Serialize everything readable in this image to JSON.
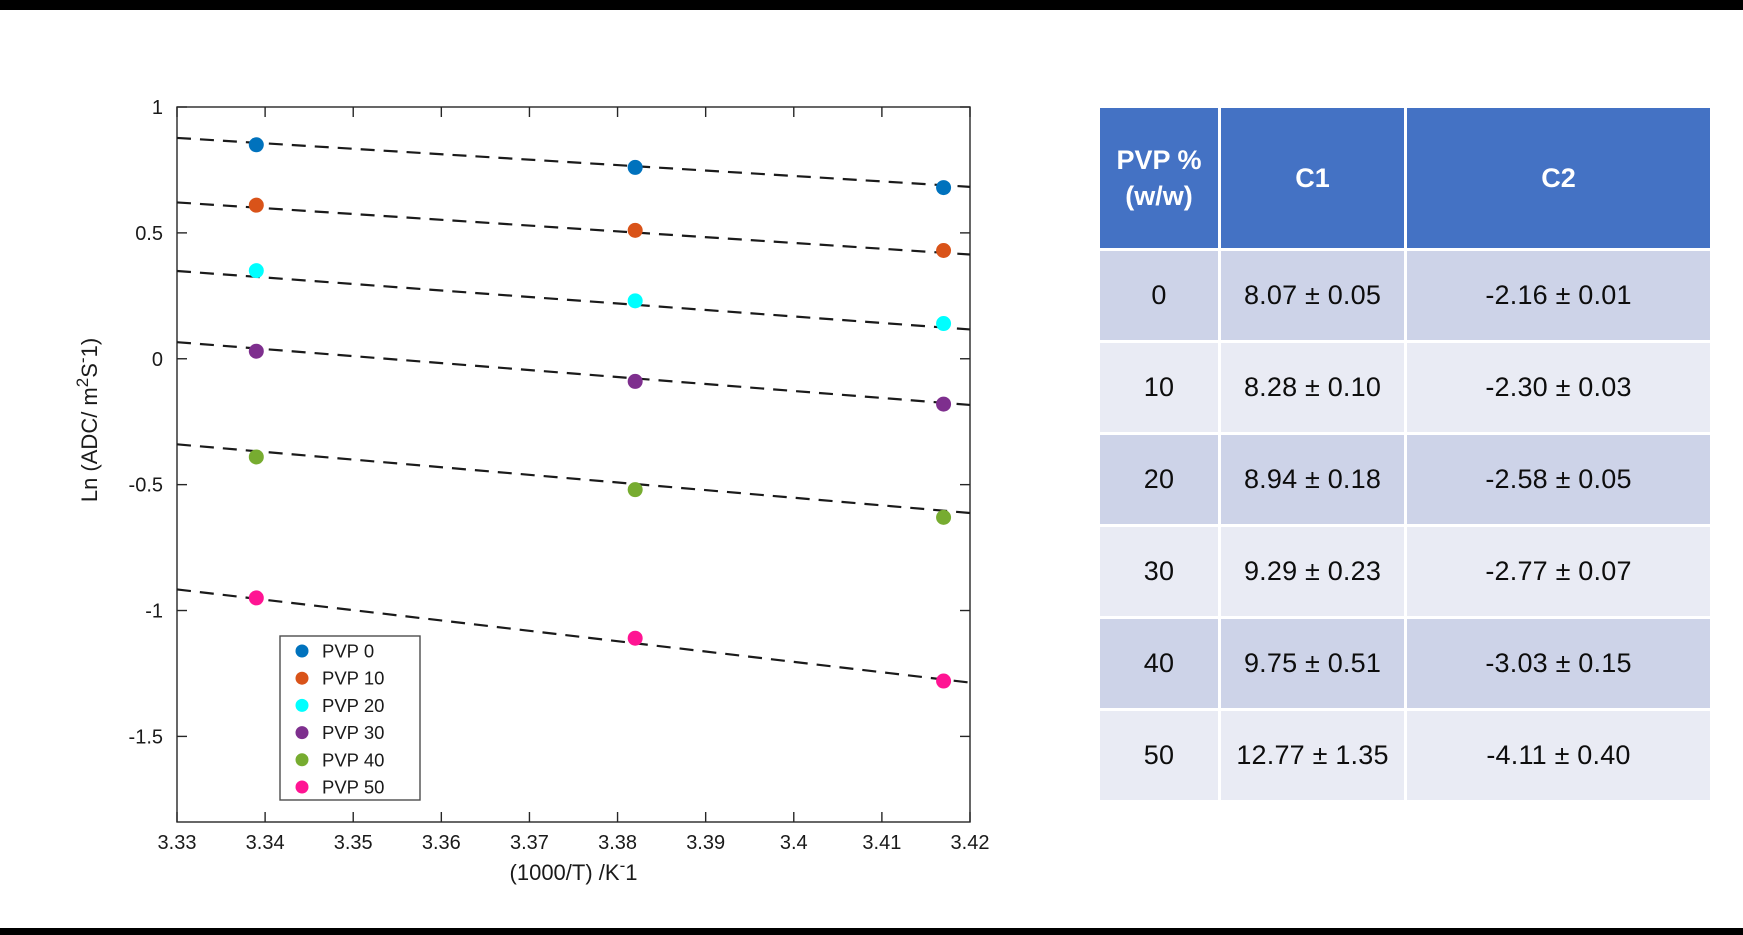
{
  "chart_data": {
    "type": "scatter",
    "title": "",
    "xlabel_parts": [
      "(1000/T) /K",
      "-",
      "1"
    ],
    "ylabel_parts": [
      "Ln (ADC/ m",
      "2",
      "S",
      "-",
      "1)"
    ],
    "xlim": [
      3.33,
      3.42
    ],
    "ylim": [
      -1.84,
      1.0
    ],
    "grid": false,
    "x_ticks": [
      3.33,
      3.34,
      3.35,
      3.36,
      3.37,
      3.38,
      3.39,
      3.4,
      3.41,
      3.42
    ],
    "x_tick_labels": [
      "3.33",
      "3.34",
      "3.35",
      "3.36",
      "3.37",
      "3.38",
      "3.39",
      "3.4",
      "3.41",
      "3.42"
    ],
    "y_ticks": [
      1,
      0.5,
      0,
      -0.5,
      -1,
      -1.5
    ],
    "y_tick_labels": [
      "1",
      "0.5",
      "0",
      "-0.5",
      "-1",
      "-1.5"
    ],
    "x": [
      3.339,
      3.382,
      3.417
    ],
    "series": [
      {
        "name": "PVP 0",
        "color": "#0072BD",
        "values": [
          0.85,
          0.76,
          0.68
        ],
        "fit": {
          "c1": 8.07,
          "c2": -2.16
        }
      },
      {
        "name": "PVP 10",
        "color": "#D95319",
        "values": [
          0.61,
          0.51,
          0.43
        ],
        "fit": {
          "c1": 8.28,
          "c2": -2.3
        }
      },
      {
        "name": "PVP 20",
        "color": "#00FFFF",
        "values": [
          0.35,
          0.23,
          0.14
        ],
        "fit": {
          "c1": 8.94,
          "c2": -2.58
        }
      },
      {
        "name": "PVP 30",
        "color": "#7E2F8E",
        "values": [
          0.03,
          -0.09,
          -0.18
        ],
        "fit": {
          "c1": 9.29,
          "c2": -2.77
        }
      },
      {
        "name": "PVP 40",
        "color": "#77AC30",
        "values": [
          -0.39,
          -0.52,
          -0.63
        ],
        "fit": {
          "c1": 9.75,
          "c2": -3.03
        }
      },
      {
        "name": "PVP 50",
        "color": "#FF1493",
        "values": [
          -0.95,
          -1.11,
          -1.28
        ],
        "fit": {
          "c1": 12.77,
          "c2": -4.11
        }
      }
    ],
    "legend": {
      "position": "lower-left",
      "entries": [
        "PVP 0",
        "PVP 10",
        "PVP 20",
        "PVP 30",
        "PVP 40",
        "PVP 50"
      ]
    },
    "fit_line_style": "dashed-black"
  },
  "table": {
    "header": [
      "PVP %\n(w/w)",
      "C1",
      "C2"
    ],
    "rows": [
      [
        "0",
        "8.07 ± 0.05",
        "-2.16 ± 0.01"
      ],
      [
        "10",
        "8.28 ± 0.10",
        "-2.30 ± 0.03"
      ],
      [
        "20",
        "8.94 ± 0.18",
        "-2.58 ± 0.05"
      ],
      [
        "30",
        "9.29 ± 0.23",
        "-2.77 ± 0.07"
      ],
      [
        "40",
        "9.75 ± 0.51",
        "-3.03 ± 0.15"
      ],
      [
        "50",
        "12.77 ± 1.35",
        "-4.11 ± 0.40"
      ]
    ],
    "colors": {
      "header_bg": "#4472C4",
      "header_text": "#FFFFFF",
      "row_dark": "#CDD3E8",
      "row_light": "#E9EBF4",
      "axis_color": "#262626",
      "fit_line_color": "#1a1a1a"
    }
  }
}
